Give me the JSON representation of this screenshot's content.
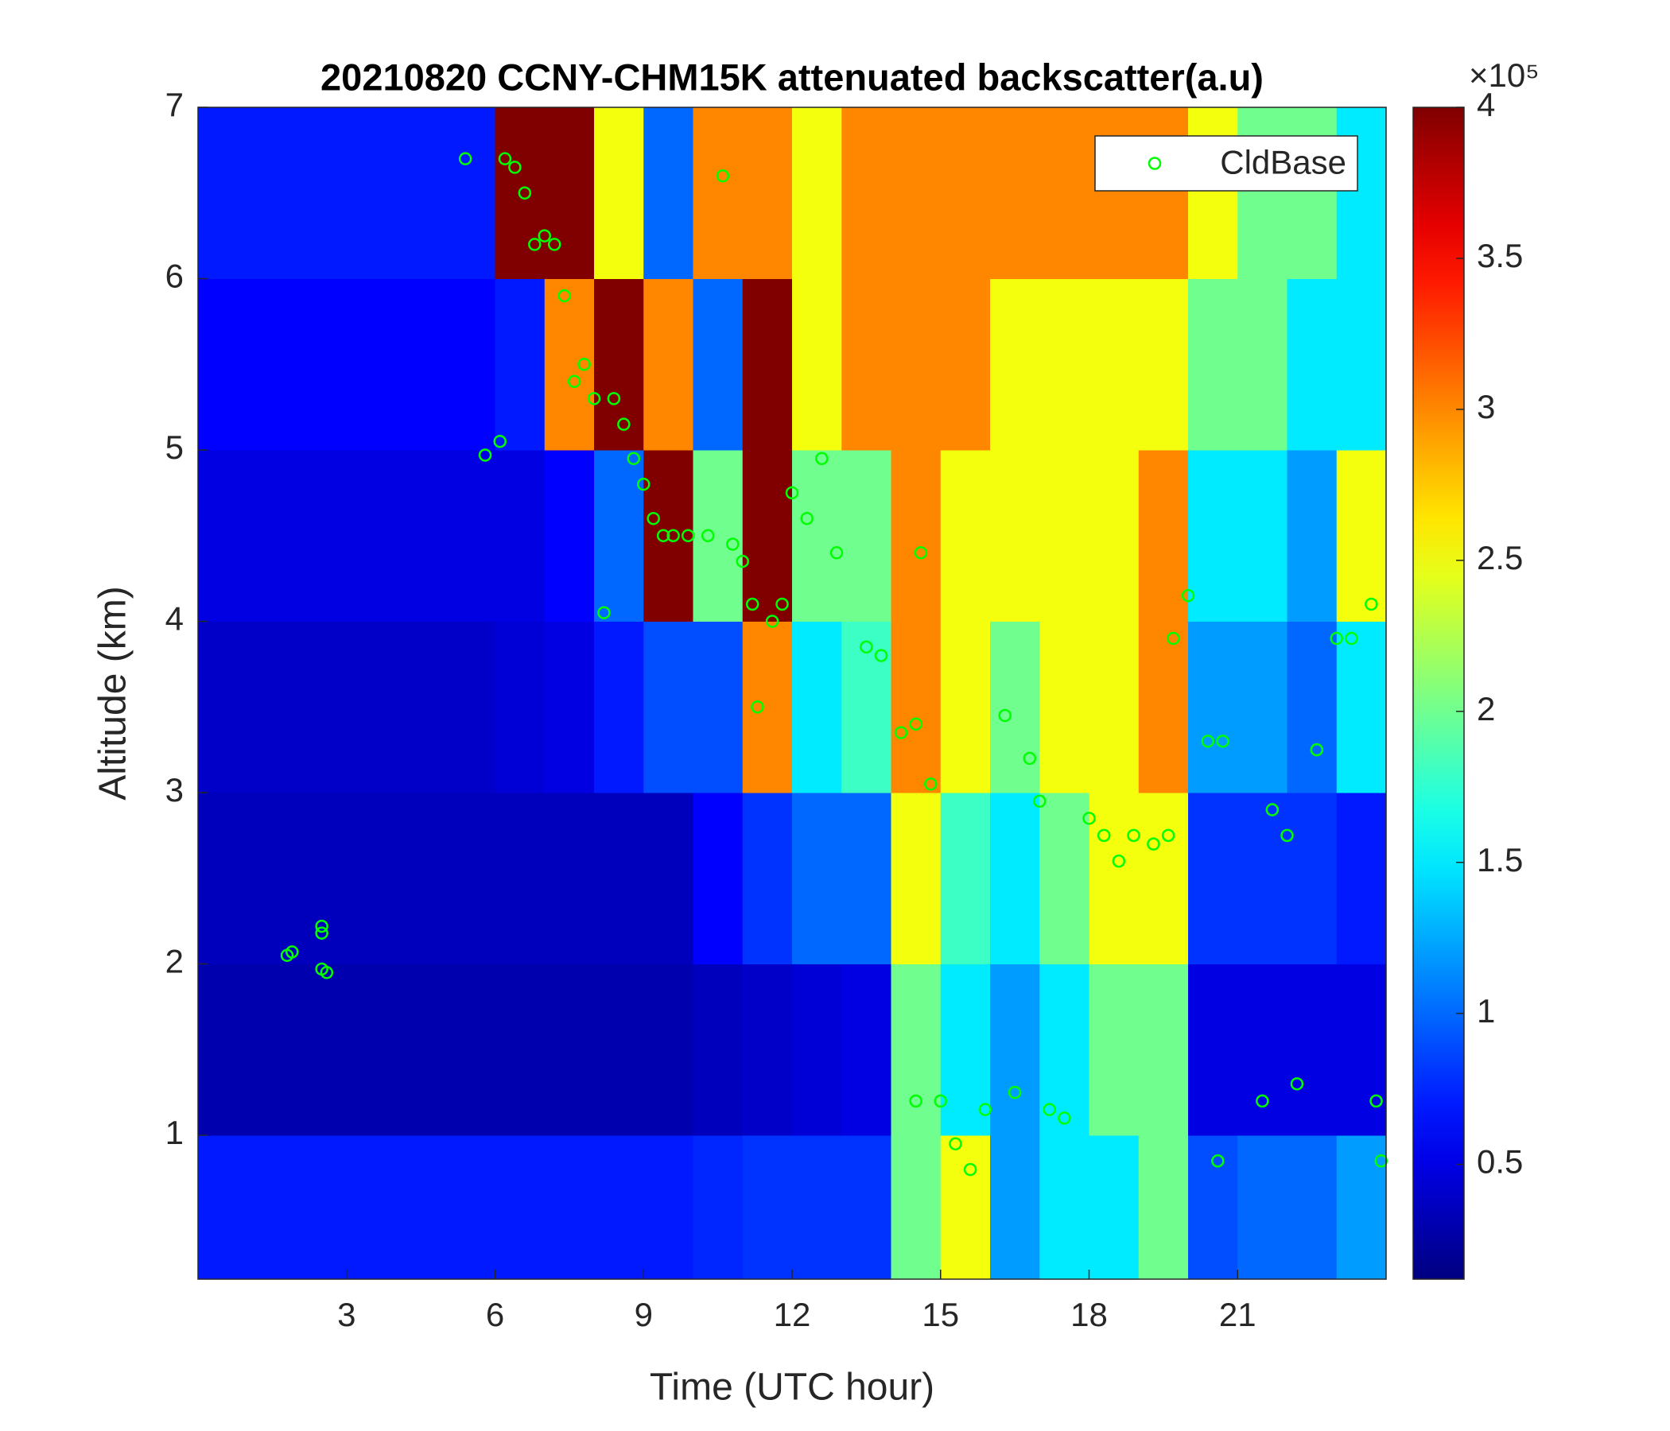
{
  "chart_data": {
    "type": "heatmap",
    "title": "20210820 CCNY-CHM15K attenuated backscatter(a.u)",
    "xlabel": "Time (UTC hour)",
    "ylabel": "Altitude (km)",
    "xlim": [
      0,
      24
    ],
    "xticks": [
      3,
      6,
      9,
      12,
      15,
      18,
      21
    ],
    "ylim": [
      0.16,
      7
    ],
    "yticks": [
      1,
      2,
      3,
      4,
      5,
      6,
      7
    ],
    "colormap": "jet",
    "clim": [
      0.12,
      4
    ],
    "cticks": [
      0.5,
      1,
      1.5,
      2,
      2.5,
      3,
      3.5,
      4
    ],
    "cscale_label": "×10⁵",
    "x": [
      0.5,
      1.5,
      2.5,
      3.5,
      4.5,
      5.5,
      6.5,
      7.5,
      8.5,
      9.5,
      10.5,
      11.5,
      12.5,
      13.5,
      14.5,
      15.5,
      16.5,
      17.5,
      18.5,
      19.5,
      20.5,
      21.5,
      22.5,
      23.5
    ],
    "y": [
      0.5,
      1.5,
      2.5,
      3.5,
      4.5,
      5.5,
      6.5
    ],
    "z": [
      [
        0.7,
        0.7,
        0.7,
        0.7,
        0.7,
        0.7,
        0.7,
        0.7,
        0.7,
        0.7,
        0.75,
        0.8,
        0.8,
        0.8,
        2,
        2.5,
        1.2,
        1.5,
        1.5,
        2,
        0.9,
        1,
        1,
        1.2
      ],
      [
        0.3,
        0.3,
        0.3,
        0.3,
        0.3,
        0.3,
        0.3,
        0.3,
        0.3,
        0.3,
        0.35,
        0.4,
        0.45,
        0.5,
        2,
        1.5,
        1.2,
        1.5,
        2,
        2,
        0.5,
        0.5,
        0.5,
        0.5
      ],
      [
        0.35,
        0.35,
        0.35,
        0.35,
        0.35,
        0.35,
        0.35,
        0.35,
        0.35,
        0.35,
        0.6,
        0.8,
        1,
        1,
        2.5,
        1.8,
        1.5,
        2,
        2.5,
        2.5,
        0.8,
        0.8,
        0.8,
        0.7
      ],
      [
        0.4,
        0.4,
        0.4,
        0.4,
        0.4,
        0.4,
        0.45,
        0.5,
        0.7,
        0.9,
        0.9,
        3,
        1.5,
        1.8,
        3,
        2.5,
        2,
        2.5,
        2.5,
        3,
        1.2,
        1.2,
        1,
        1.5
      ],
      [
        0.5,
        0.5,
        0.5,
        0.5,
        0.5,
        0.5,
        0.5,
        0.6,
        1,
        4,
        2,
        4,
        2,
        2,
        3,
        2.5,
        2.5,
        2.5,
        2.5,
        3,
        1.5,
        1.5,
        1.2,
        2.5
      ],
      [
        0.6,
        0.6,
        0.6,
        0.6,
        0.6,
        0.6,
        0.7,
        3,
        4,
        3,
        1,
        4,
        2.5,
        3,
        3,
        3,
        2.5,
        2.5,
        2.5,
        2.5,
        2,
        2,
        1.5,
        1.5
      ],
      [
        0.7,
        0.7,
        0.7,
        0.7,
        0.7,
        0.7,
        4,
        4,
        2.5,
        1,
        3,
        3,
        2.5,
        3,
        3,
        3,
        3,
        3,
        3,
        3,
        2.5,
        2,
        2,
        1.5
      ]
    ],
    "legend": "upper right",
    "series": [
      {
        "name": "CldBase",
        "color": "#00ff00",
        "x": [
          1.8,
          1.9,
          2.5,
          2.5,
          2.5,
          2.6,
          5.4,
          5.8,
          6.1,
          6.2,
          6.4,
          6.6,
          6.8,
          7.0,
          7.2,
          7.4,
          7.6,
          7.8,
          8.0,
          8.2,
          8.4,
          8.6,
          8.8,
          9.0,
          9.2,
          9.4,
          9.6,
          9.9,
          10.3,
          10.6,
          10.8,
          11.0,
          11.2,
          11.3,
          11.6,
          11.8,
          12.0,
          12.3,
          12.6,
          12.9,
          13.5,
          13.8,
          14.2,
          14.5,
          14.6,
          14.8,
          14.5,
          15.0,
          15.3,
          15.6,
          15.9,
          16.3,
          16.5,
          16.8,
          17.0,
          17.2,
          17.5,
          18.0,
          18.3,
          18.6,
          18.9,
          19.3,
          19.6,
          19.7,
          20.0,
          20.4,
          20.7,
          20.6,
          21.5,
          21.7,
          22.0,
          22.2,
          22.6,
          23.0,
          23.3,
          23.7,
          23.8,
          23.9
        ],
        "values": [
          2.05,
          2.07,
          2.22,
          2.18,
          1.97,
          1.95,
          6.7,
          4.97,
          5.05,
          6.7,
          6.65,
          6.5,
          6.2,
          6.25,
          6.2,
          5.9,
          5.4,
          5.5,
          5.3,
          4.05,
          5.3,
          5.15,
          4.95,
          4.8,
          4.6,
          4.5,
          4.5,
          4.5,
          4.5,
          6.6,
          4.45,
          4.35,
          4.1,
          3.5,
          4.0,
          4.1,
          4.75,
          4.6,
          4.95,
          4.4,
          3.85,
          3.8,
          3.35,
          3.4,
          4.4,
          3.05,
          1.2,
          1.2,
          0.95,
          0.8,
          1.15,
          3.45,
          1.25,
          3.2,
          2.95,
          1.15,
          1.1,
          2.85,
          2.75,
          2.6,
          2.75,
          2.7,
          2.75,
          3.9,
          4.15,
          3.3,
          3.3,
          0.85,
          1.2,
          2.9,
          2.75,
          1.3,
          3.25,
          3.9,
          3.9,
          4.1,
          1.2,
          0.85
        ]
      }
    ]
  }
}
